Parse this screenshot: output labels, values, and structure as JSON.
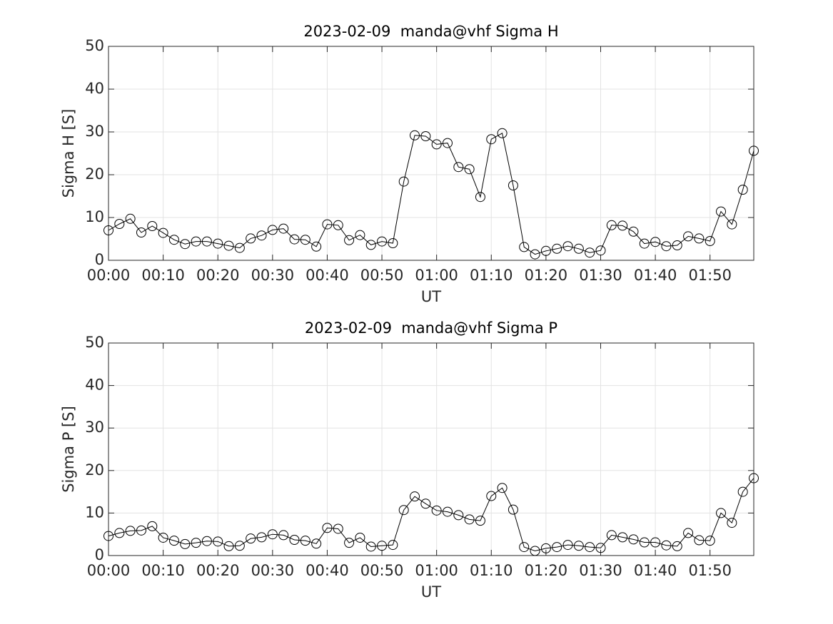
{
  "chart_data": [
    {
      "type": "line",
      "title": "2023-02-09  manda@vhf Sigma H",
      "xlabel": "UT",
      "ylabel": "Sigma H [S]",
      "x": [
        "00:00",
        "00:02",
        "00:04",
        "00:06",
        "00:08",
        "00:10",
        "00:12",
        "00:14",
        "00:16",
        "00:18",
        "00:20",
        "00:22",
        "00:24",
        "00:26",
        "00:28",
        "00:30",
        "00:32",
        "00:34",
        "00:36",
        "00:38",
        "00:40",
        "00:42",
        "00:44",
        "00:46",
        "00:48",
        "00:50",
        "00:52",
        "00:54",
        "00:56",
        "00:58",
        "01:00",
        "01:02",
        "01:04",
        "01:06",
        "01:08",
        "01:10",
        "01:12",
        "01:14",
        "01:16",
        "01:18",
        "01:20",
        "01:22",
        "01:24",
        "01:26",
        "01:28",
        "01:30",
        "01:32",
        "01:34",
        "01:36",
        "01:38",
        "01:40",
        "01:42",
        "01:44",
        "01:46",
        "01:48",
        "01:50",
        "01:52",
        "01:54",
        "01:56",
        "01:58"
      ],
      "series": [
        {
          "color": "#000000",
          "values": [
            7.0,
            8.5,
            9.7,
            6.5,
            8.0,
            6.4,
            4.8,
            3.8,
            4.4,
            4.4,
            3.9,
            3.4,
            2.9,
            5.1,
            5.8,
            7.1,
            7.4,
            4.9,
            4.8,
            3.2,
            8.4,
            8.2,
            4.7,
            5.9,
            3.6,
            4.4,
            4.0,
            18.4,
            29.2,
            29.0,
            27.1,
            27.4,
            21.8,
            21.3,
            14.8,
            28.3,
            29.7,
            17.5,
            3.1,
            1.4,
            2.2,
            2.7,
            3.3,
            2.7,
            1.8,
            2.3,
            8.2,
            8.1,
            6.7,
            3.9,
            4.3,
            3.3,
            3.5,
            5.6,
            5.1,
            4.5,
            11.4,
            8.4,
            16.5,
            25.6
          ]
        }
      ],
      "marker": "circle",
      "xlim": [
        "00:00",
        "01:58"
      ],
      "xticks": [
        "00:00",
        "00:10",
        "00:20",
        "00:30",
        "00:40",
        "00:50",
        "01:00",
        "01:10",
        "01:20",
        "01:30",
        "01:40",
        "01:50"
      ],
      "ylim": [
        0,
        50
      ],
      "yticks": [
        0,
        10,
        20,
        30,
        40,
        50
      ],
      "grid": true
    },
    {
      "type": "line",
      "title": "2023-02-09  manda@vhf Sigma P",
      "xlabel": "UT",
      "ylabel": "Sigma P [S]",
      "x": [
        "00:00",
        "00:02",
        "00:04",
        "00:06",
        "00:08",
        "00:10",
        "00:12",
        "00:14",
        "00:16",
        "00:18",
        "00:20",
        "00:22",
        "00:24",
        "00:26",
        "00:28",
        "00:30",
        "00:32",
        "00:34",
        "00:36",
        "00:38",
        "00:40",
        "00:42",
        "00:44",
        "00:46",
        "00:48",
        "00:50",
        "00:52",
        "00:54",
        "00:56",
        "00:58",
        "01:00",
        "01:02",
        "01:04",
        "01:06",
        "01:08",
        "01:10",
        "01:12",
        "01:14",
        "01:16",
        "01:18",
        "01:20",
        "01:22",
        "01:24",
        "01:26",
        "01:28",
        "01:30",
        "01:32",
        "01:34",
        "01:36",
        "01:38",
        "01:40",
        "01:42",
        "01:44",
        "01:46",
        "01:48",
        "01:50",
        "01:52",
        "01:54",
        "01:56",
        "01:58"
      ],
      "series": [
        {
          "color": "#000000",
          "values": [
            4.6,
            5.3,
            5.8,
            5.9,
            6.9,
            4.2,
            3.5,
            2.7,
            3.0,
            3.4,
            3.3,
            2.2,
            2.3,
            4.0,
            4.3,
            5.0,
            4.8,
            3.7,
            3.5,
            2.8,
            6.5,
            6.3,
            3.0,
            4.2,
            2.1,
            2.3,
            2.5,
            10.7,
            13.9,
            12.2,
            10.6,
            10.3,
            9.5,
            8.5,
            8.2,
            14.0,
            15.9,
            10.8,
            2.0,
            1.1,
            1.7,
            2.0,
            2.5,
            2.3,
            2.0,
            1.8,
            4.8,
            4.3,
            3.8,
            3.1,
            3.1,
            2.4,
            2.2,
            5.3,
            3.6,
            3.5,
            10.0,
            7.7,
            15.0,
            18.2
          ]
        }
      ],
      "marker": "circle",
      "xlim": [
        "00:00",
        "01:58"
      ],
      "xticks": [
        "00:00",
        "00:10",
        "00:20",
        "00:30",
        "00:40",
        "00:50",
        "01:00",
        "01:10",
        "01:20",
        "01:30",
        "01:40",
        "01:50"
      ],
      "ylim": [
        0,
        50
      ],
      "yticks": [
        0,
        10,
        20,
        30,
        40,
        50
      ],
      "grid": true
    }
  ]
}
